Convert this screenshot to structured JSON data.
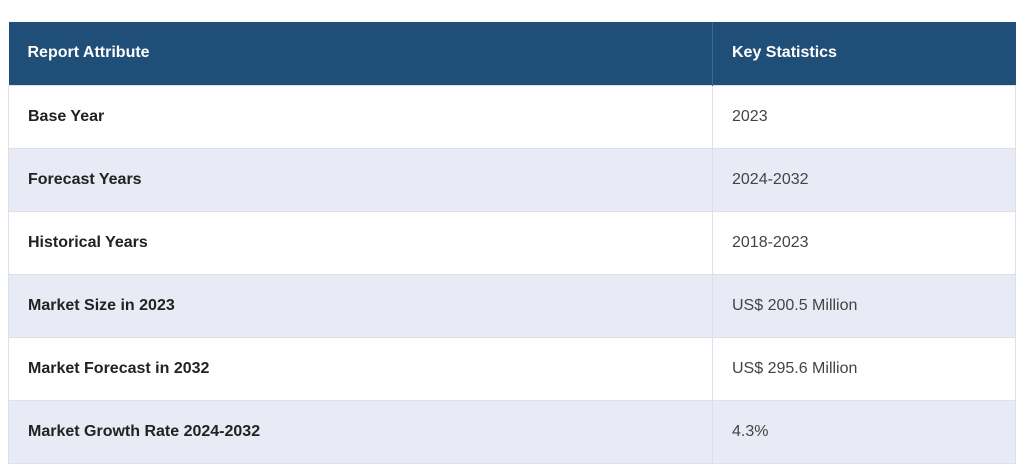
{
  "table": {
    "header": [
      "Report Attribute",
      "Key Statistics"
    ],
    "rows": [
      [
        "Base Year",
        "2023"
      ],
      [
        "Forecast Years",
        "2024-2032"
      ],
      [
        "Historical Years",
        "2018-2023"
      ],
      [
        "Market Size in 2023",
        "US$ 200.5 Million"
      ],
      [
        "Market Forecast in 2032",
        "US$ 295.6 Million"
      ],
      [
        "Market Growth Rate 2024-2032",
        "4.3%"
      ]
    ]
  }
}
